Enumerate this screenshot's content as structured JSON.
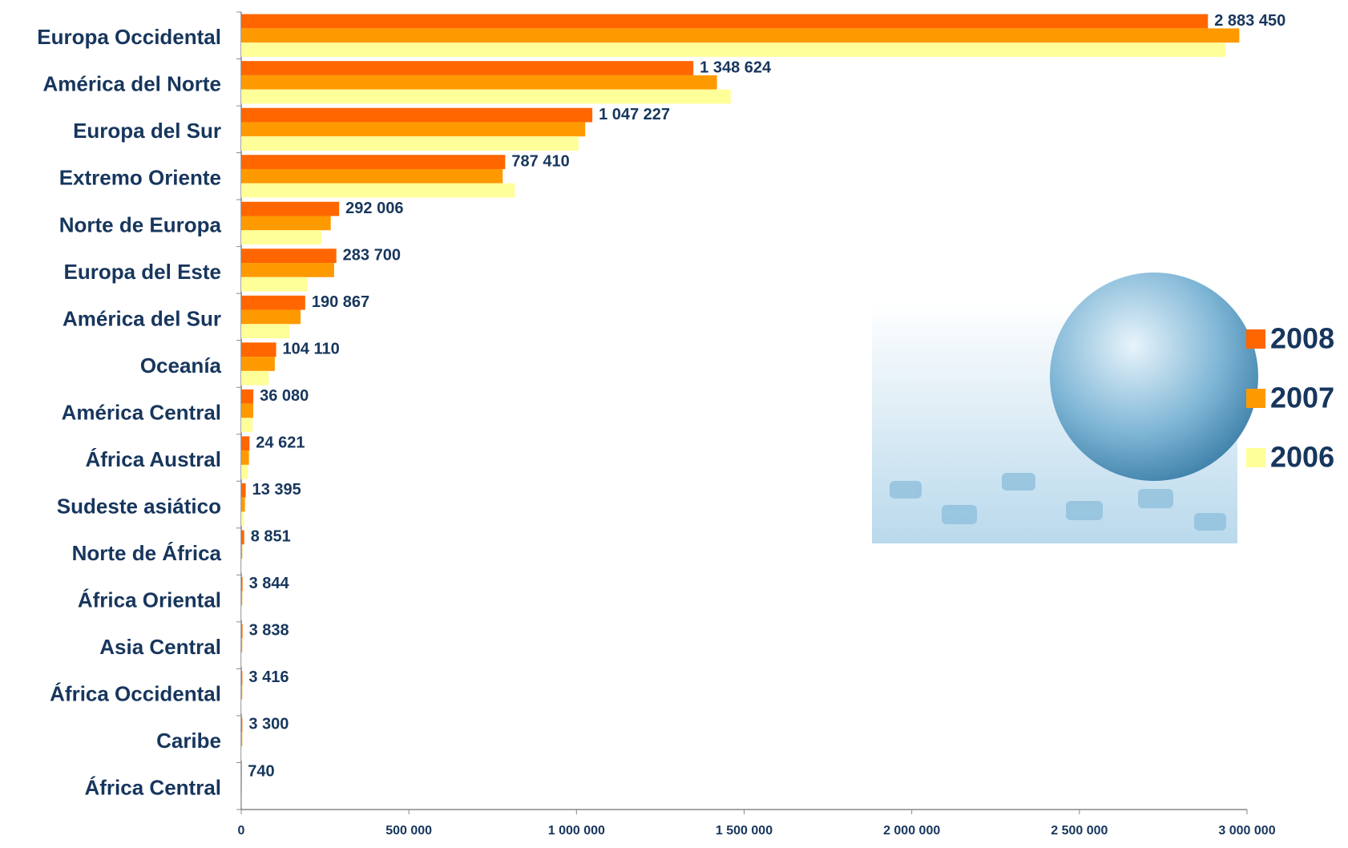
{
  "chart_data": {
    "type": "bar",
    "orientation": "horizontal",
    "categories": [
      "Europa Occidental",
      "América del Norte",
      "Europa del Sur",
      "Extremo Oriente",
      "Norte de Europa",
      "Europa del Este",
      "América del Sur",
      "Oceanía",
      "América Central",
      "África Austral",
      "Sudeste asiático",
      "Norte de África",
      "África Oriental",
      "Asia Central",
      "África Occidental",
      "Caribe",
      "África Central"
    ],
    "series": [
      {
        "name": "2008",
        "color": "#ff6600",
        "values": [
          2883450,
          1348624,
          1047227,
          787410,
          292006,
          283700,
          190867,
          104110,
          36080,
          24621,
          13395,
          8851,
          3844,
          3838,
          3416,
          3300,
          740
        ],
        "value_labels": [
          "2 883 450",
          "1 348 624",
          "1 047 227",
          "787 410",
          "292 006",
          "283 700",
          "190 867",
          "104 110",
          "36 080",
          "24 621",
          "13 395",
          "8 851",
          "3 844",
          "3 838",
          "3 416",
          "3 300",
          "740"
        ]
      },
      {
        "name": "2007",
        "color": "#ff9900",
        "values": [
          2977000,
          1419000,
          1026000,
          780000,
          267000,
          277000,
          177000,
          100000,
          36000,
          23000,
          11000,
          3000,
          3000,
          3000,
          3000,
          3000,
          700
        ]
      },
      {
        "name": "2006",
        "color": "#ffff99",
        "values": [
          2936000,
          1460000,
          1006000,
          816000,
          239000,
          198000,
          144000,
          82000,
          34000,
          20000,
          8000,
          2000,
          2000,
          2000,
          2000,
          2000,
          600
        ]
      }
    ],
    "xlim": [
      0,
      3000000
    ],
    "xticks": [
      0,
      {
        "value": 500000,
        "label": "500 000"
      },
      {
        "value": 1000000,
        "label": "1 000 000"
      },
      {
        "value": 1500000,
        "label": "1 500 000"
      },
      {
        "value": 2000000,
        "label": "2 000 000"
      },
      {
        "value": 2500000,
        "label": "2 500 000"
      },
      {
        "value": 3000000,
        "label": "3 000 000"
      }
    ],
    "legend": "right"
  }
}
